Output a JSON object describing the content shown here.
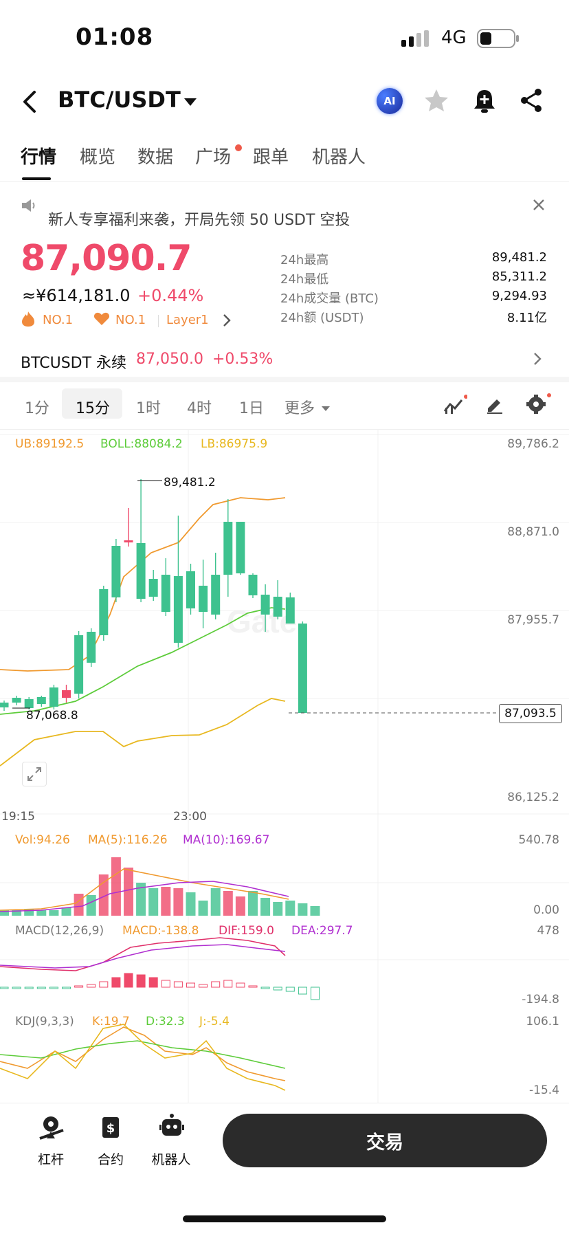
{
  "status": {
    "time": "01:08",
    "network": "4G"
  },
  "nav": {
    "pair": "BTC/USDT",
    "ai": "AI"
  },
  "tabs": [
    "行情",
    "概览",
    "数据",
    "广场",
    "跟单",
    "机器人"
  ],
  "banner": {
    "text": "新人专享福利来袭，开局先领 50 USDT 空投"
  },
  "price": {
    "last": "87,090.7",
    "cny": "≈¥614,181.0",
    "change": "+0.44%",
    "badges": [
      "NO.1",
      "NO.1",
      "Layer1"
    ]
  },
  "stats": [
    {
      "label": "24h最高",
      "value": "89,481.2"
    },
    {
      "label": "24h最低",
      "value": "85,311.2"
    },
    {
      "label": "24h成交量 (BTC)",
      "value": "9,294.93"
    },
    {
      "label": "24h额 (USDT)",
      "value": "8.11亿"
    }
  ],
  "perp": {
    "label": "BTCUSDT 永续",
    "price": "87,050.0",
    "change": "+0.53%"
  },
  "timeframes": [
    "1分",
    "15分",
    "1时",
    "4时",
    "1日",
    "更多"
  ],
  "chart": {
    "boll": {
      "ub": "UB:89192.5",
      "mid": "BOLL:88084.2",
      "lb": "LB:86975.9"
    },
    "y_axis": [
      "89,786.2",
      "88,871.0",
      "87,955.7",
      "86,125.2"
    ],
    "high_marker": "89,481.2",
    "low_marker": "87,068.8",
    "last_price_tag": "87,093.5",
    "x_axis": [
      "19:15",
      "23:00"
    ],
    "watermark": "Gate",
    "vol": {
      "vol": "Vol:94.26",
      "ma5": "MA(5):116.26",
      "ma10": "MA(10):169.67",
      "max": "540.78",
      "min": "0.00"
    },
    "macd": {
      "title": "MACD(12,26,9)",
      "macd": "MACD:-138.8",
      "dif": "DIF:159.0",
      "dea": "DEA:297.7",
      "max": "478",
      "min": "-194.8"
    },
    "kdj": {
      "title": "KDJ(9,3,3)",
      "k": "K:19.7",
      "d": "D:32.3",
      "j": "J:-5.4",
      "max": "106.1",
      "min": "-15.4"
    }
  },
  "colors": {
    "up": "#ef4a6a",
    "down": "#3ec28f",
    "accent_orange": "#f0a020"
  },
  "bottom": {
    "items": [
      "杠杆",
      "合约",
      "机器人"
    ],
    "trade": "交易"
  }
}
